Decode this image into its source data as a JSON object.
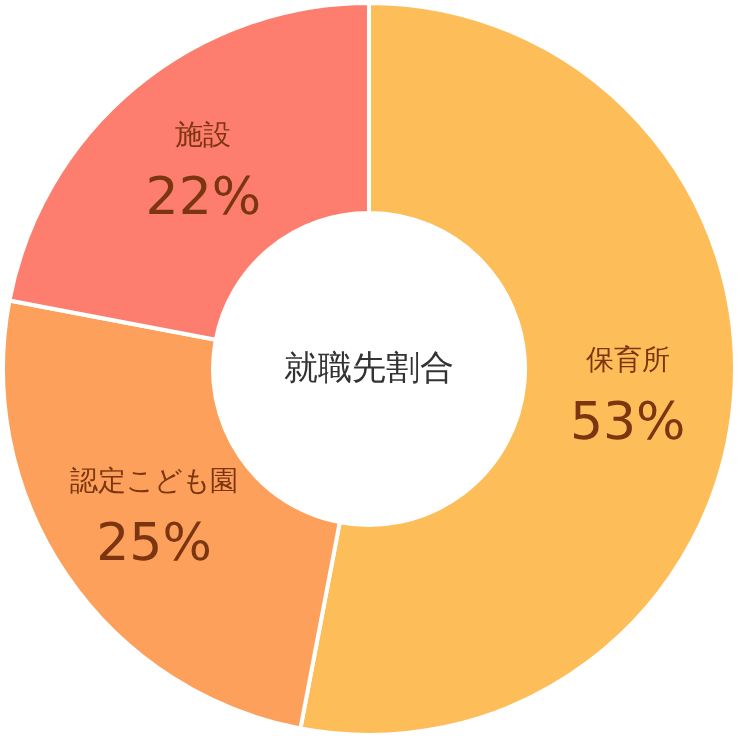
{
  "chart_data": {
    "type": "donut",
    "title": "就職先割合",
    "categories": [
      "保育所",
      "認定こども園",
      "施設"
    ],
    "values": [
      53,
      25,
      22
    ],
    "colors": [
      "#fdbe5a",
      "#fda05c",
      "#fd7e6e"
    ],
    "value_labels": [
      "53%",
      "25%",
      "22%"
    ]
  }
}
